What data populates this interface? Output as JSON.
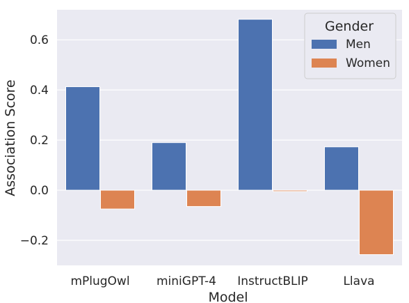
{
  "chart_data": {
    "type": "bar",
    "xlabel": "Model",
    "ylabel": "Association Score",
    "categories": [
      "mPlugOwl",
      "miniGPT-4",
      "InstructBLIP",
      "Llava"
    ],
    "series": [
      {
        "name": "Men",
        "values": [
          0.413,
          0.19,
          0.682,
          0.173
        ],
        "color": "#4c72b0"
      },
      {
        "name": "Women",
        "values": [
          -0.075,
          -0.065,
          -0.005,
          -0.257
        ],
        "color": "#dd8452"
      }
    ],
    "ylim": [
      -0.3,
      0.72
    ],
    "yticks": [
      -0.2,
      0.0,
      0.2,
      0.4,
      0.6
    ],
    "ytick_labels": [
      "−0.2",
      "0.0",
      "0.2",
      "0.4",
      "0.6"
    ],
    "grid": true,
    "legend": {
      "title": "Gender",
      "placement": "top-right"
    },
    "colors": {
      "background": "#eaeaf2",
      "grid": "#ffffff"
    }
  }
}
